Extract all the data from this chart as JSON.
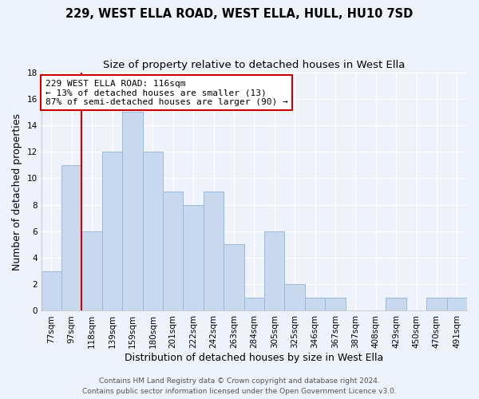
{
  "title": "229, WEST ELLA ROAD, WEST ELLA, HULL, HU10 7SD",
  "subtitle": "Size of property relative to detached houses in West Ella",
  "xlabel": "Distribution of detached houses by size in West Ella",
  "ylabel": "Number of detached properties",
  "bar_labels": [
    "77sqm",
    "97sqm",
    "118sqm",
    "139sqm",
    "159sqm",
    "180sqm",
    "201sqm",
    "222sqm",
    "242sqm",
    "263sqm",
    "284sqm",
    "305sqm",
    "325sqm",
    "346sqm",
    "367sqm",
    "387sqm",
    "408sqm",
    "429sqm",
    "450sqm",
    "470sqm",
    "491sqm"
  ],
  "bar_values": [
    3,
    11,
    6,
    12,
    15,
    12,
    9,
    8,
    9,
    5,
    1,
    6,
    2,
    1,
    1,
    0,
    0,
    1,
    0,
    1,
    1
  ],
  "bar_color": "#c8d8ee",
  "bar_edge_color": "#9ab8d8",
  "highlight_line_color": "#cc0000",
  "annotation_line1": "229 WEST ELLA ROAD: 116sqm",
  "annotation_line2": "← 13% of detached houses are smaller (13)",
  "annotation_line3": "87% of semi-detached houses are larger (90) →",
  "annotation_box_color": "#ffffff",
  "annotation_box_edge_color": "#cc0000",
  "ylim": [
    0,
    18
  ],
  "yticks": [
    0,
    2,
    4,
    6,
    8,
    10,
    12,
    14,
    16,
    18
  ],
  "footer_line1": "Contains HM Land Registry data © Crown copyright and database right 2024.",
  "footer_line2": "Contains public sector information licensed under the Open Government Licence v3.0.",
  "bg_color": "#eef2fb",
  "plot_bg_color": "#eef2fb",
  "grid_color": "#ffffff",
  "title_fontsize": 10.5,
  "subtitle_fontsize": 9.5,
  "label_fontsize": 9,
  "tick_fontsize": 7.5,
  "annotation_fontsize": 8,
  "footer_fontsize": 6.5
}
